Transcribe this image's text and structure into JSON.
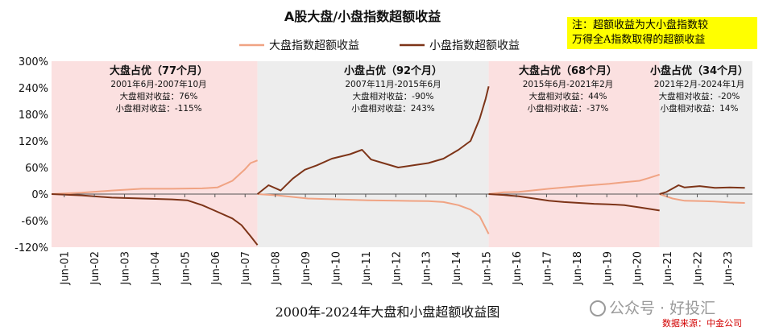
{
  "note": {
    "line1": "注：超额收益为大小盘指数较",
    "line2": "万得全A指数取得的超额收益"
  },
  "caption": "2000年-2024年大盘和小盘超额收益图",
  "watermark": "公众号 · 好投汇",
  "source": "数据来源：中金公司",
  "colors": {
    "large": "#f0a383",
    "small": "#7d3418",
    "band_pink": "#fbe0e0",
    "band_gray": "#ededed"
  },
  "chart_data": {
    "type": "line",
    "title": "A股大盘/小盘指数超额收益",
    "xlabel": "",
    "ylabel": "",
    "ylim": [
      -120,
      300
    ],
    "yticks": [
      "-120%",
      "-60%",
      "0%",
      "60%",
      "120%",
      "180%",
      "240%",
      "300%"
    ],
    "yticks_values": [
      -120,
      -60,
      0,
      60,
      120,
      180,
      240,
      300
    ],
    "xlim": [
      2001.0,
      2024.25
    ],
    "xticks": [
      "Jun-01",
      "Jun-02",
      "Jun-03",
      "Jun-04",
      "Jun-05",
      "Jun-06",
      "Jun-07",
      "Jun-08",
      "Jun-09",
      "Jun-10",
      "Jun-11",
      "Jun-12",
      "Jun-13",
      "Jun-14",
      "Jun-15",
      "Jun-16",
      "Jun-17",
      "Jun-18",
      "Jun-19",
      "Jun-20",
      "Jun-21",
      "Jun-22",
      "Jun-23"
    ],
    "xticks_values": [
      2001.42,
      2002.42,
      2003.42,
      2004.42,
      2005.42,
      2006.42,
      2007.42,
      2008.42,
      2009.42,
      2010.42,
      2011.42,
      2012.42,
      2013.42,
      2014.42,
      2015.42,
      2016.42,
      2017.42,
      2018.42,
      2019.42,
      2020.42,
      2021.42,
      2022.42,
      2023.42
    ],
    "legend": {
      "position": "top-center"
    },
    "regimes": [
      {
        "start": 2001.0,
        "end": 2007.83,
        "style": "pink",
        "title": "大盘占优（77个月）",
        "period": "2001年6月-2007年10月",
        "large_text": "大盘相对收益：76%",
        "small_text": "小盘相对收益：-115%"
      },
      {
        "start": 2007.83,
        "end": 2015.5,
        "style": "gray",
        "title": "小盘占优（92个月）",
        "period": "2007年11月-2015年6月",
        "large_text": "大盘相对收益：-90%",
        "small_text": "小盘相对收益：243%"
      },
      {
        "start": 2015.5,
        "end": 2021.17,
        "style": "pink",
        "title": "大盘占优（68个月）",
        "period": "2015年6月-2021年2月",
        "large_text": "大盘相对收益：44%",
        "small_text": "小盘相对收益：-37%"
      },
      {
        "start": 2021.17,
        "end": 2024.25,
        "style": "gray",
        "title": "小盘占优（34个月）",
        "period": "2021年2月-2024年1月",
        "large_text": "大盘相对收益：-20%",
        "small_text": "小盘相对收益：14%"
      }
    ],
    "series": [
      {
        "name": "大盘指数超额收益",
        "color": "#f0a383",
        "segments": [
          {
            "x": [
              2001.0,
              2002.0,
              2003.0,
              2004.0,
              2005.0,
              2006.0,
              2006.5,
              2007.0,
              2007.4,
              2007.6,
              2007.83
            ],
            "y": [
              0,
              3,
              8,
              12,
              12,
              13,
              15,
              30,
              55,
              70,
              76
            ]
          },
          {
            "x": [
              2007.83,
              2008.5,
              2009.5,
              2010.5,
              2011.5,
              2012.5,
              2013.5,
              2014.0,
              2014.5,
              2014.9,
              2015.2,
              2015.5
            ],
            "y": [
              0,
              -3,
              -10,
              -12,
              -14,
              -15,
              -16,
              -18,
              -25,
              -35,
              -50,
              -90
            ]
          },
          {
            "x": [
              2015.5,
              2016.0,
              2016.5,
              2017.5,
              2018.5,
              2019.5,
              2020.0,
              2020.5,
              2020.8,
              2021.17
            ],
            "y": [
              0,
              4,
              5,
              12,
              18,
              23,
              27,
              30,
              36,
              44
            ]
          },
          {
            "x": [
              2021.17,
              2021.6,
              2022.0,
              2022.6,
              2023.0,
              2023.5,
              2024.0
            ],
            "y": [
              0,
              -10,
              -15,
              -16,
              -17,
              -19,
              -20
            ]
          }
        ]
      },
      {
        "name": "小盘指数超额收益",
        "color": "#7d3418",
        "segments": [
          {
            "x": [
              2001.0,
              2002.0,
              2003.0,
              2004.0,
              2005.0,
              2005.5,
              2006.0,
              2006.5,
              2007.0,
              2007.3,
              2007.6,
              2007.83
            ],
            "y": [
              0,
              -3,
              -8,
              -10,
              -12,
              -14,
              -25,
              -40,
              -55,
              -70,
              -95,
              -115
            ]
          },
          {
            "x": [
              2007.83,
              2008.2,
              2008.6,
              2009.0,
              2009.4,
              2009.8,
              2010.3,
              2010.9,
              2011.3,
              2011.6,
              2012.0,
              2012.5,
              2013.0,
              2013.5,
              2014.0,
              2014.5,
              2014.9,
              2015.2,
              2015.4,
              2015.5
            ],
            "y": [
              0,
              20,
              8,
              35,
              55,
              65,
              80,
              90,
              100,
              78,
              70,
              60,
              65,
              70,
              80,
              100,
              120,
              170,
              215,
              243
            ]
          },
          {
            "x": [
              2015.5,
              2016.0,
              2016.5,
              2017.0,
              2017.5,
              2018.0,
              2018.5,
              2019.0,
              2019.5,
              2020.0,
              2020.5,
              2021.17
            ],
            "y": [
              0,
              -2,
              -5,
              -10,
              -15,
              -18,
              -20,
              -22,
              -23,
              -25,
              -30,
              -37
            ]
          },
          {
            "x": [
              2021.17,
              2021.4,
              2021.8,
              2022.0,
              2022.5,
              2023.0,
              2023.5,
              2024.0
            ],
            "y": [
              0,
              5,
              20,
              15,
              18,
              14,
              15,
              14
            ]
          }
        ]
      }
    ]
  }
}
